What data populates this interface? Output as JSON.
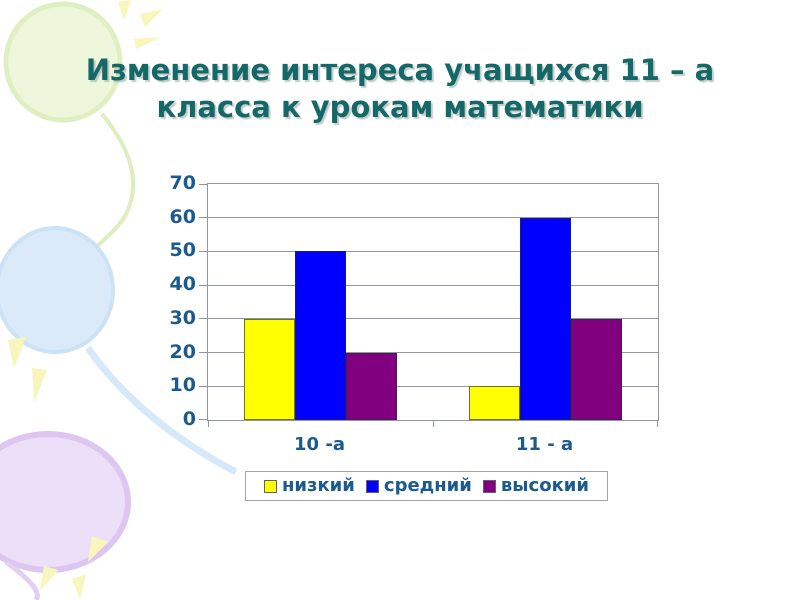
{
  "slide": {
    "title_line1": "Изменение интереса учащихся 11 – а",
    "title_line2": "класса к урокам математики",
    "title_color": "#156868"
  },
  "chart_data": {
    "type": "bar",
    "title": "",
    "categories": [
      "10 -а",
      "11 - а"
    ],
    "series": [
      {
        "name": "низкий",
        "color": "#ffff00",
        "values": [
          30,
          10
        ]
      },
      {
        "name": "средний",
        "color": "#0000ff",
        "values": [
          50,
          60
        ]
      },
      {
        "name": "высокий",
        "color": "#800080",
        "values": [
          20,
          30
        ]
      }
    ],
    "ylim": [
      0,
      70
    ],
    "yticks": [
      0,
      10,
      20,
      30,
      40,
      50,
      60,
      70
    ],
    "grid": true,
    "legend_position": "bottom",
    "axis_text_color": "#1a5a8e",
    "gridline_color": "#8f979f",
    "decoration_colors": {
      "balloon_green": "#eef6dc",
      "balloon_blue": "#daeaf9",
      "balloon_purple": "#eddff8",
      "sparkle_yellow": "#f8f6bc"
    }
  }
}
